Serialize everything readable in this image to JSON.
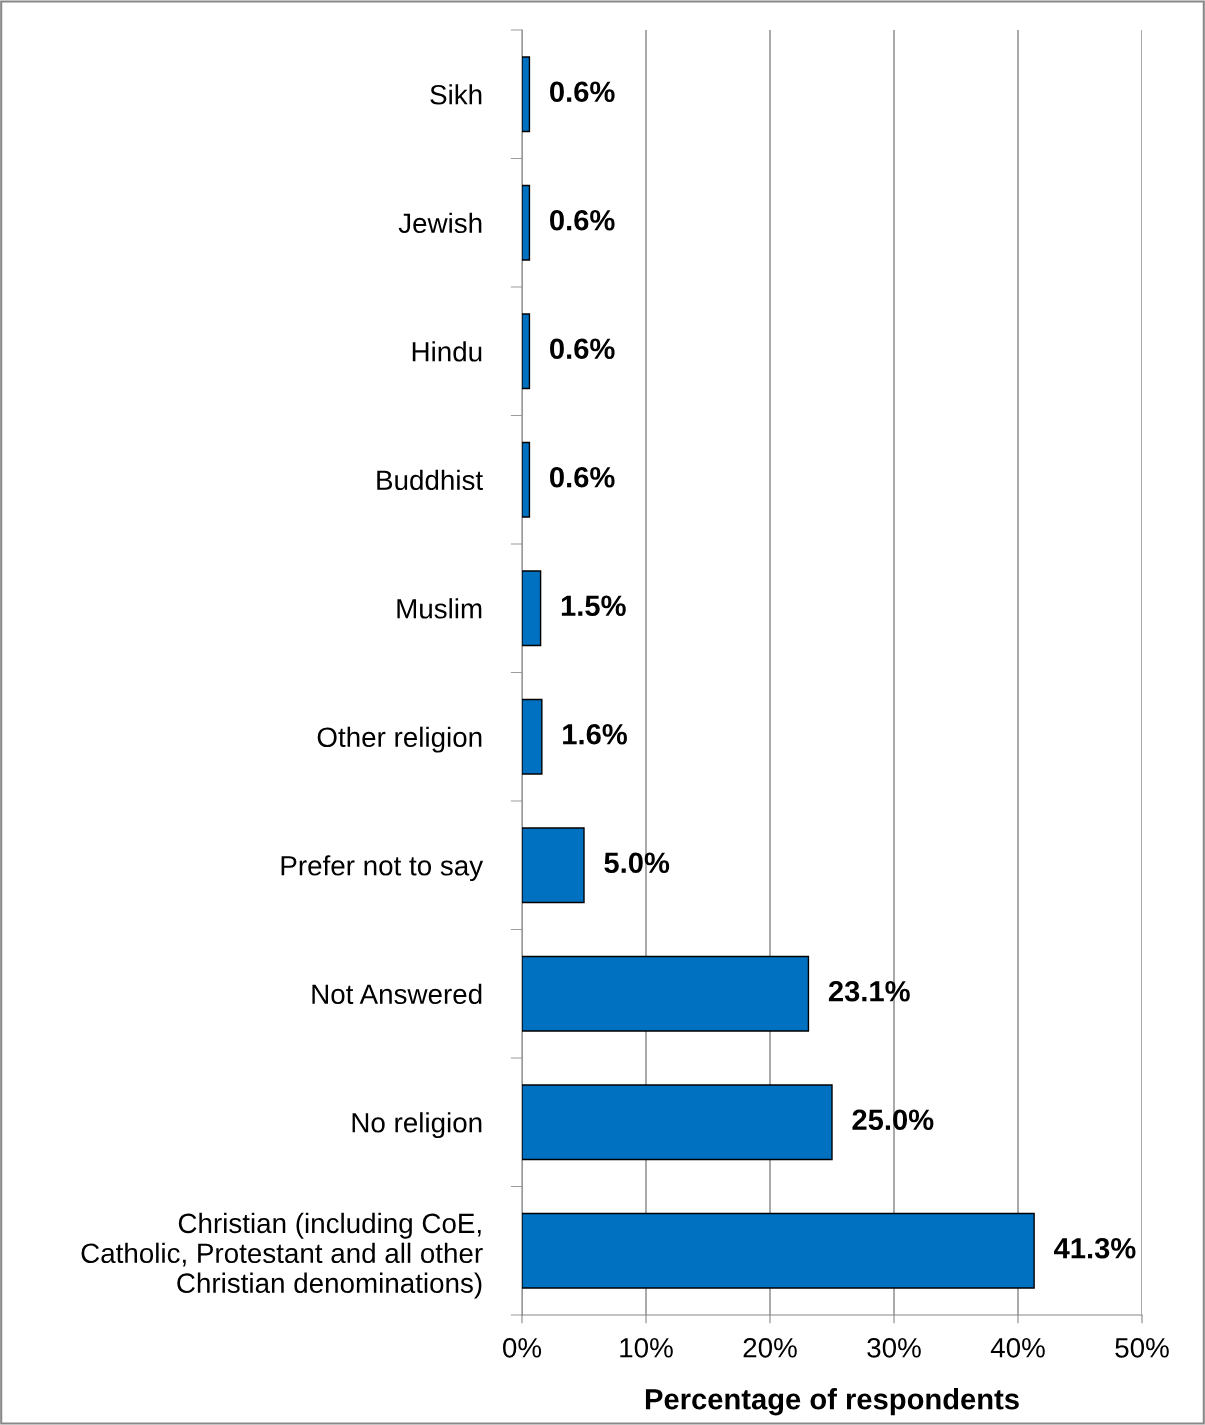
{
  "chart_data": {
    "type": "bar",
    "orientation": "horizontal",
    "categories": [
      "Sikh",
      "Jewish",
      "Hindu",
      "Buddhist",
      "Muslim",
      "Other religion",
      "Prefer not to say",
      "Not Answered",
      "No religion",
      "Christian (including CoE,\nCatholic, Protestant and all other\nChristian denominations)"
    ],
    "values": [
      0.6,
      0.6,
      0.6,
      0.6,
      1.5,
      1.6,
      5.0,
      23.1,
      25.0,
      41.3
    ],
    "value_labels": [
      "0.6%",
      "0.6%",
      "0.6%",
      "0.6%",
      "1.5%",
      "1.6%",
      "5.0%",
      "23.1%",
      "25.0%",
      "41.3%"
    ],
    "color": "#0070c0",
    "xlabel": "Percentage of respondents",
    "xlim": [
      0,
      50
    ],
    "xticks": [
      {
        "value": 0,
        "label": "0%"
      },
      {
        "value": 10,
        "label": "10%"
      },
      {
        "value": 20,
        "label": "20%"
      },
      {
        "value": 30,
        "label": "30%"
      },
      {
        "value": 40,
        "label": "40%"
      },
      {
        "value": 50,
        "label": "50%"
      }
    ],
    "grid": "x"
  }
}
